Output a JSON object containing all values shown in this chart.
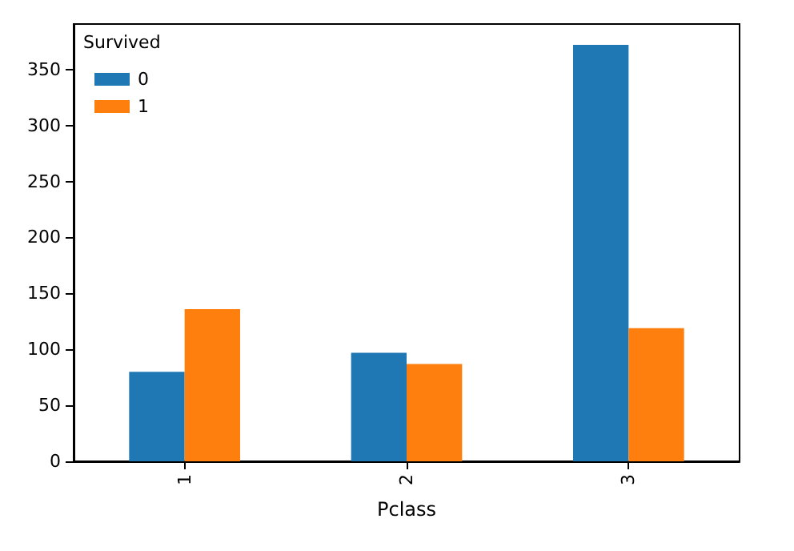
{
  "chart_data": {
    "type": "bar",
    "xlabel": "Pclass",
    "legend_title": "Survived",
    "categories": [
      "1",
      "2",
      "3"
    ],
    "series": [
      {
        "name": "0",
        "color": "#1f77b4",
        "values": [
          80,
          97,
          372
        ]
      },
      {
        "name": "1",
        "color": "#ff7f0e",
        "values": [
          136,
          87,
          119
        ]
      }
    ],
    "ylim": [
      0,
      390.6
    ],
    "yticks": [
      0,
      50,
      100,
      150,
      200,
      250,
      300,
      350
    ],
    "grid": false,
    "legend": "top left"
  }
}
